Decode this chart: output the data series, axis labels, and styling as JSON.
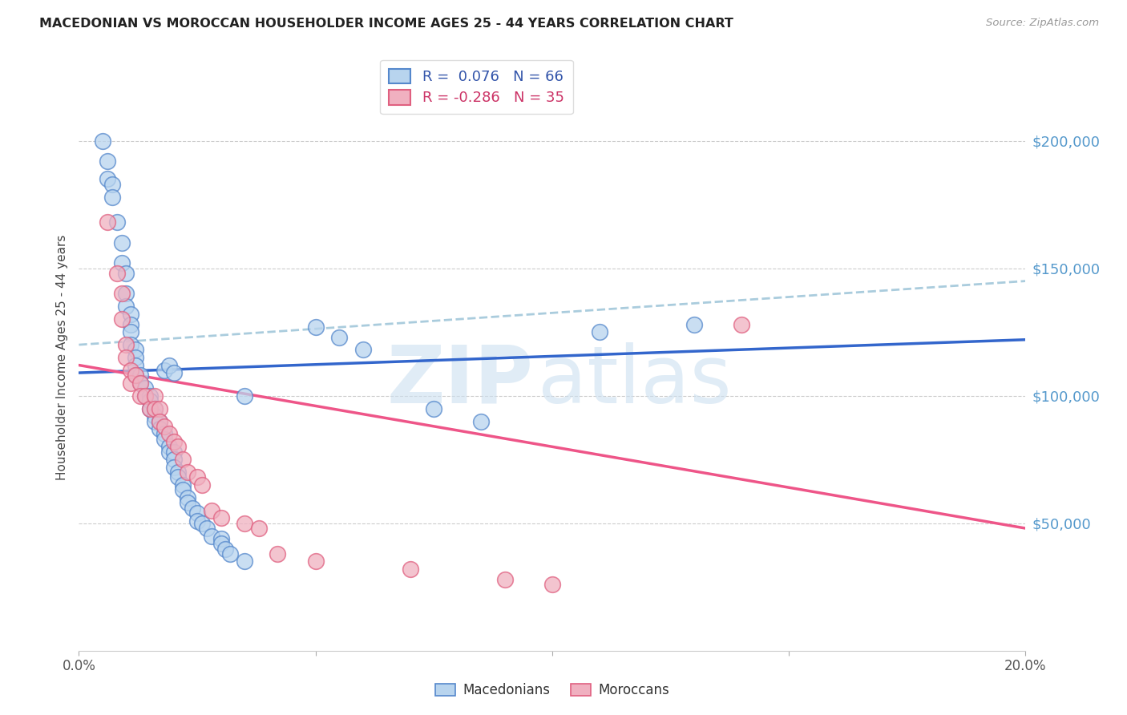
{
  "title": "MACEDONIAN VS MOROCCAN HOUSEHOLDER INCOME AGES 25 - 44 YEARS CORRELATION CHART",
  "source": "Source: ZipAtlas.com",
  "ylabel": "Householder Income Ages 25 - 44 years",
  "legend_macedonians": "Macedonians",
  "legend_moroccans": "Moroccans",
  "legend_r_mac": "R =  0.076",
  "legend_n_mac": "N = 66",
  "legend_r_mor": "R = -0.286",
  "legend_n_mor": "N = 35",
  "ytick_values": [
    50000,
    100000,
    150000,
    200000
  ],
  "xlim": [
    0.0,
    0.2
  ],
  "ylim": [
    0,
    230000
  ],
  "blue_fill": "#b8d4ee",
  "blue_edge": "#5588cc",
  "pink_fill": "#f0b0c0",
  "pink_edge": "#e06080",
  "blue_line": "#3366cc",
  "pink_line": "#ee5588",
  "dash_line": "#aaccdd",
  "mac_scatter_x": [
    0.005,
    0.006,
    0.006,
    0.007,
    0.007,
    0.008,
    0.009,
    0.009,
    0.01,
    0.01,
    0.01,
    0.011,
    0.011,
    0.011,
    0.011,
    0.012,
    0.012,
    0.012,
    0.012,
    0.013,
    0.013,
    0.014,
    0.014,
    0.015,
    0.015,
    0.015,
    0.016,
    0.016,
    0.016,
    0.017,
    0.017,
    0.018,
    0.018,
    0.019,
    0.019,
    0.02,
    0.02,
    0.02,
    0.021,
    0.021,
    0.022,
    0.022,
    0.023,
    0.023,
    0.024,
    0.025,
    0.025,
    0.026,
    0.027,
    0.028,
    0.03,
    0.03,
    0.031,
    0.032,
    0.035,
    0.018,
    0.019,
    0.02,
    0.035,
    0.05,
    0.055,
    0.06,
    0.075,
    0.085,
    0.11,
    0.13
  ],
  "mac_scatter_y": [
    200000,
    192000,
    185000,
    183000,
    178000,
    168000,
    160000,
    152000,
    148000,
    140000,
    135000,
    132000,
    128000,
    125000,
    120000,
    118000,
    115000,
    112000,
    108000,
    108000,
    105000,
    103000,
    100000,
    100000,
    98000,
    95000,
    95000,
    92000,
    90000,
    90000,
    87000,
    85000,
    83000,
    80000,
    78000,
    78000,
    75000,
    72000,
    70000,
    68000,
    65000,
    63000,
    60000,
    58000,
    56000,
    54000,
    51000,
    50000,
    48000,
    45000,
    44000,
    42000,
    40000,
    38000,
    35000,
    110000,
    112000,
    109000,
    100000,
    127000,
    123000,
    118000,
    95000,
    90000,
    125000,
    128000
  ],
  "mor_scatter_x": [
    0.006,
    0.008,
    0.009,
    0.009,
    0.01,
    0.01,
    0.011,
    0.011,
    0.012,
    0.013,
    0.013,
    0.014,
    0.015,
    0.016,
    0.016,
    0.017,
    0.017,
    0.018,
    0.019,
    0.02,
    0.021,
    0.022,
    0.023,
    0.025,
    0.026,
    0.028,
    0.03,
    0.035,
    0.038,
    0.042,
    0.05,
    0.07,
    0.09,
    0.1,
    0.14
  ],
  "mor_scatter_y": [
    168000,
    148000,
    140000,
    130000,
    120000,
    115000,
    110000,
    105000,
    108000,
    105000,
    100000,
    100000,
    95000,
    100000,
    95000,
    95000,
    90000,
    88000,
    85000,
    82000,
    80000,
    75000,
    70000,
    68000,
    65000,
    55000,
    52000,
    50000,
    48000,
    38000,
    35000,
    32000,
    28000,
    26000,
    128000
  ],
  "mac_line_x": [
    0.0,
    0.2
  ],
  "mac_line_y": [
    109000,
    122000
  ],
  "mor_line_x": [
    0.0,
    0.2
  ],
  "mor_line_y": [
    112000,
    48000
  ],
  "dash_line_x": [
    0.0,
    0.2
  ],
  "dash_line_y": [
    120000,
    145000
  ]
}
